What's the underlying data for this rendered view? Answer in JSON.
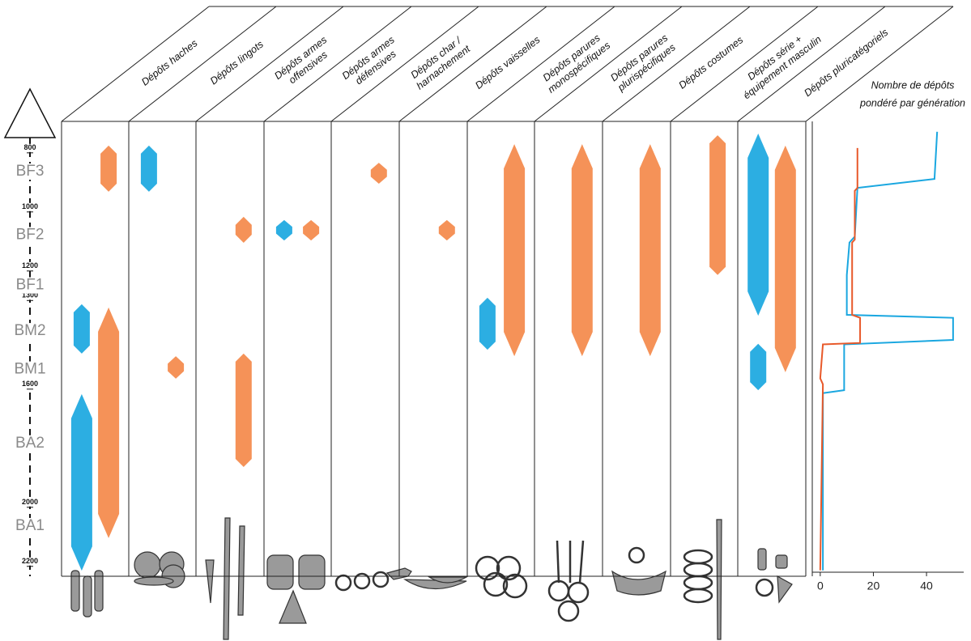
{
  "chart_data": {
    "type": "range",
    "ylim": [
      710,
      2250
    ],
    "yticks": [
      800,
      1000,
      1200,
      1300,
      1600,
      2000,
      2200
    ],
    "periods": [
      {
        "label": "BF3",
        "year": 880
      },
      {
        "label": "BF2",
        "year": 1095
      },
      {
        "label": "BF1",
        "year": 1265
      },
      {
        "label": "BM2",
        "year": 1420
      },
      {
        "label": "BM1",
        "year": 1550
      },
      {
        "label": "BA2",
        "year": 1800
      },
      {
        "label": "BA1",
        "year": 2080
      }
    ],
    "columns": [
      {
        "label": [
          "Dépôts haches"
        ],
        "bars": [
          {
            "from": 792,
            "to": 948,
            "color": "#f4894a"
          },
          {
            "from": 1329,
            "to": 1496,
            "color": "#1aa7e0"
          },
          {
            "from": 1633,
            "to": 2231,
            "color": "#1aa7e0"
          },
          {
            "from": 1340,
            "to": 2121,
            "color": "#f4894a"
          }
        ]
      },
      {
        "label": [
          "Dépôts lingots"
        ],
        "bars": [
          {
            "from": 792,
            "to": 948,
            "color": "#1aa7e0"
          },
          {
            "from": 1505,
            "to": 1581,
            "color": "#f4894a"
          }
        ]
      },
      {
        "label": [
          "Dépôts armes",
          "offensives"
        ],
        "bars": [
          {
            "from": 1033,
            "to": 1121,
            "color": "#f4894a"
          },
          {
            "from": 1496,
            "to": 1880,
            "color": "#f4894a"
          }
        ]
      },
      {
        "label": [
          "Dépôts armes",
          "défensives"
        ],
        "bars": [
          {
            "from": 1044,
            "to": 1113,
            "color": "#1aa7e0"
          },
          {
            "from": 1044,
            "to": 1113,
            "color": "#f4894a"
          }
        ]
      },
      {
        "label": [
          "Dépôts char /",
          "harnachement"
        ],
        "bars": [
          {
            "from": 850,
            "to": 921,
            "color": "#f4894a"
          }
        ]
      },
      {
        "label": [
          "Dépôts vaisselles"
        ],
        "bars": [
          {
            "from": 1044,
            "to": 1113,
            "color": "#f4894a"
          }
        ]
      },
      {
        "label": [
          "Dépôts parures",
          "monospécifiques"
        ],
        "bars": [
          {
            "from": 1307,
            "to": 1483,
            "color": "#1aa7e0"
          },
          {
            "from": 787,
            "to": 1505,
            "color": "#f4894a"
          }
        ]
      },
      {
        "label": [
          "Dépôts parures",
          "plurispécifiques"
        ],
        "bars": [
          {
            "from": 787,
            "to": 1505,
            "color": "#f4894a"
          }
        ]
      },
      {
        "label": [
          "Dépôts costumes"
        ],
        "bars": [
          {
            "from": 787,
            "to": 1505,
            "color": "#f4894a"
          }
        ]
      },
      {
        "label": [
          "Dépôts série +",
          "équipement masculin"
        ],
        "bars": [
          {
            "from": 757,
            "to": 1230,
            "color": "#f4894a"
          }
        ]
      },
      {
        "label": [
          "Dépôts pluricatégoriels"
        ],
        "bars": [
          {
            "from": 751,
            "to": 1368,
            "color": "#1aa7e0"
          },
          {
            "from": 1463,
            "to": 1620,
            "color": "#1aa7e0"
          },
          {
            "from": 792,
            "to": 1559,
            "color": "#f4894a"
          }
        ]
      }
    ],
    "profile": {
      "type": "line",
      "title": [
        "Nombre de dépôts",
        "pondéré par génération"
      ],
      "xlim": [
        -3,
        54
      ],
      "xticks": [
        0,
        20,
        40
      ],
      "series": [
        {
          "color": "#1aa7e0",
          "years": [
            745,
            905,
            935,
            1100,
            1120,
            1230,
            1365,
            1375,
            1450,
            1465,
            1620,
            1630,
            2230
          ],
          "values": [
            44,
            43,
            14,
            13,
            11,
            10,
            10,
            50,
            50,
            9,
            9,
            1,
            1
          ]
        },
        {
          "color": "#e8592a",
          "years": [
            800,
            935,
            945,
            1110,
            1120,
            1230,
            1365,
            1375,
            1460,
            1465,
            1580,
            1600,
            2230
          ],
          "values": [
            14,
            14,
            13,
            13,
            12,
            12,
            12,
            15,
            15,
            1,
            0,
            1,
            0
          ]
        }
      ]
    }
  }
}
